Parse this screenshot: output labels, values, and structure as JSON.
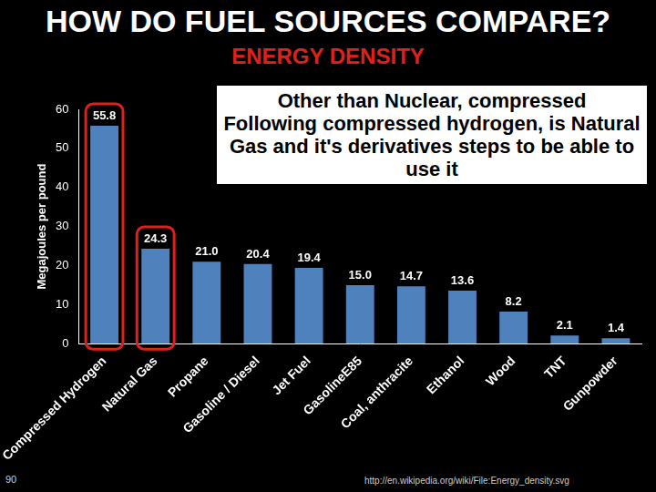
{
  "title": "HOW DO FUEL SOURCES COMPARE?",
  "subtitle": "ENERGY DENSITY",
  "annotation": [
    "Other than Nuclear, compressed",
    "Following compressed hydrogen, is Natural Gas and it's derivatives steps to be able to use it"
  ],
  "slide_number": 90,
  "source": "http://en.wikipedia.org/wiki/File:Energy_density.svg",
  "chart_data": {
    "type": "bar",
    "y_label": "Megajoules per pound",
    "categories": [
      "Compressed Hydrogen",
      "Natural Gas",
      "Propane",
      "Gasoline / Diesel",
      "Jet Fuel",
      "GasolineE85",
      "Coal, anthracite",
      "Ethanol",
      "Wood",
      "TNT",
      "Gunpowder"
    ],
    "values": [
      55.8,
      24.3,
      21.0,
      20.4,
      19.4,
      15.0,
      14.7,
      13.6,
      8.2,
      2.1,
      1.4
    ],
    "value_labels": [
      "55.8",
      "24.3",
      "21.0",
      "20.4",
      "19.4",
      "15.0",
      "14.7",
      "13.6",
      "8.2",
      "2.1",
      "1.4"
    ],
    "color": "#4f81bd",
    "ylim": [
      0,
      60
    ],
    "yticks": [
      0,
      10,
      20,
      30,
      40,
      50,
      60
    ],
    "grid": false,
    "data_labels": true
  }
}
